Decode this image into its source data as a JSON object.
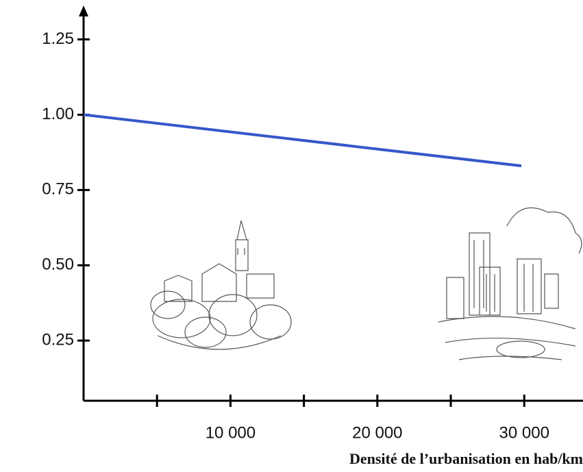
{
  "chart_data": {
    "type": "line",
    "x_label": "Densité de l’urbanisation en hab/km",
    "series": [
      {
        "color": "#3557c9",
        "x": [
          0,
          29800
        ],
        "values": [
          1.0,
          0.83
        ]
      }
    ],
    "xlim": [
      0,
      34000
    ],
    "xticks": [
      5000,
      {
        "value": 10000,
        "label": "10 000"
      },
      15000,
      {
        "value": 20000,
        "label": "20 000"
      },
      25000,
      {
        "value": 30000,
        "label": "30 000"
      }
    ],
    "ylim": [
      0.05,
      1.34
    ],
    "yticks": [
      0.25,
      {
        "value": 0.5,
        "label": "0.50"
      },
      0.75,
      {
        "value": 1.0,
        "label": "1.00"
      },
      1.25
    ],
    "grid": false
  }
}
